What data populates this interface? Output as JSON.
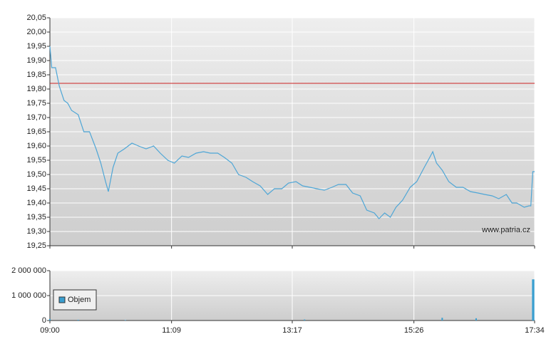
{
  "chart_data": [
    {
      "type": "line",
      "x": [
        "09:00",
        "09:02",
        "09:06",
        "09:10",
        "09:15",
        "09:19",
        "09:23",
        "09:30",
        "09:36",
        "09:42",
        "09:49",
        "09:54",
        "09:59",
        "10:02",
        "10:07",
        "10:12",
        "10:19",
        "10:27",
        "10:34",
        "10:42",
        "10:50",
        "10:57",
        "11:05",
        "11:12",
        "11:20",
        "11:27",
        "11:35",
        "11:43",
        "11:50",
        "11:58",
        "12:05",
        "12:13",
        "12:20",
        "12:28",
        "12:35",
        "12:43",
        "12:51",
        "12:58",
        "13:06",
        "13:13",
        "13:21",
        "13:28",
        "13:36",
        "13:43",
        "13:51",
        "13:59",
        "14:06",
        "14:14",
        "14:21",
        "14:29",
        "14:36",
        "14:44",
        "14:49",
        "14:55",
        "15:01",
        "15:07",
        "15:14",
        "15:22",
        "15:29",
        "15:37",
        "15:42",
        "15:46",
        "15:50",
        "15:56",
        "16:03",
        "16:11",
        "16:18",
        "16:26",
        "16:34",
        "16:41",
        "16:49",
        "16:56",
        "17:04",
        "17:10",
        "17:15",
        "17:23",
        "17:28",
        "17:30",
        "17:32",
        "17:34"
      ],
      "series": [
        {
          "color": "#4ea6d6",
          "values": [
            19.95,
            19.875,
            19.875,
            19.81,
            19.76,
            19.75,
            19.725,
            19.71,
            19.65,
            19.65,
            19.59,
            19.54,
            19.475,
            19.44,
            19.525,
            19.575,
            19.59,
            19.61,
            19.6,
            19.59,
            19.6,
            19.575,
            19.55,
            19.54,
            19.565,
            19.56,
            19.575,
            19.58,
            19.575,
            19.575,
            19.56,
            19.54,
            19.5,
            19.49,
            19.475,
            19.46,
            19.43,
            19.45,
            19.45,
            19.47,
            19.475,
            19.46,
            19.455,
            19.45,
            19.445,
            19.455,
            19.465,
            19.465,
            19.435,
            19.425,
            19.375,
            19.365,
            19.345,
            19.365,
            19.35,
            19.385,
            19.41,
            19.455,
            19.475,
            19.525,
            19.555,
            19.58,
            19.54,
            19.515,
            19.475,
            19.455,
            19.455,
            19.44,
            19.435,
            19.43,
            19.425,
            19.415,
            19.43,
            19.4,
            19.4,
            19.385,
            19.39,
            19.39,
            19.51,
            19.51
          ]
        }
      ],
      "reference_line": 19.82,
      "reference_color": "#cc2222",
      "xlim": [
        "09:00",
        "17:34"
      ],
      "ylim": [
        19.25,
        20.05
      ],
      "yticks": [
        {
          "value": 19.25,
          "label": "19,25"
        },
        {
          "value": 19.3,
          "label": "19,30"
        },
        {
          "value": 19.35,
          "label": "19,35"
        },
        {
          "value": 19.4,
          "label": "19,40"
        },
        {
          "value": 19.45,
          "label": "19,45"
        },
        {
          "value": 19.5,
          "label": "19,50"
        },
        {
          "value": 19.55,
          "label": "19,55"
        },
        {
          "value": 19.6,
          "label": "19,60"
        },
        {
          "value": 19.65,
          "label": "19,65"
        },
        {
          "value": 19.7,
          "label": "19,70"
        },
        {
          "value": 19.75,
          "label": "19,75"
        },
        {
          "value": 19.8,
          "label": "19,80"
        },
        {
          "value": 19.85,
          "label": "19,85"
        },
        {
          "value": 19.9,
          "label": "19,90"
        },
        {
          "value": 19.95,
          "label": "19,95"
        },
        {
          "value": 20.0,
          "label": "20,00"
        },
        {
          "value": 20.05,
          "label": "20,05"
        }
      ],
      "grid": true,
      "watermark": "www.patria.cz"
    },
    {
      "type": "bar",
      "x": [
        "09:00",
        "09:30",
        "10:20",
        "13:30",
        "15:56",
        "16:32",
        "17:32",
        "17:33"
      ],
      "series": [
        {
          "name": "Objem",
          "color": "#3a9fd0",
          "values": [
            60000,
            30000,
            20000,
            40000,
            110000,
            90000,
            1650000,
            1650000
          ]
        }
      ],
      "xlim": [
        "09:00",
        "17:34"
      ],
      "xticks": [
        "09:00",
        "11:09",
        "13:17",
        "15:26",
        "17:34"
      ],
      "ylim": [
        0,
        2000000
      ],
      "yticks": [
        {
          "value": 0,
          "label": "0"
        },
        {
          "value": 1000000,
          "label": "1 000 000"
        },
        {
          "value": 2000000,
          "label": "2 000 000"
        }
      ],
      "grid": true,
      "legend": "bottom-left"
    }
  ]
}
